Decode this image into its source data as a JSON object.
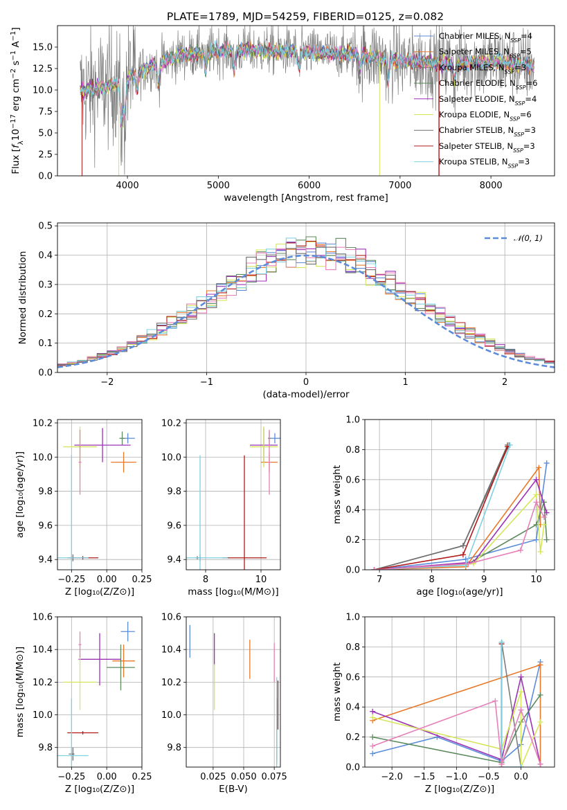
{
  "figure_title": "PLATE=1789, MJD=54259, FIBERID=0125, z=0.082",
  "colors": {
    "Chabrier MILES": "#5b8bd9",
    "Salpeter MILES": "#e8792a",
    "Kroupa MILES": "#7d7d7d",
    "Chabrier ELODIE": "#5c8a5c",
    "Salpeter ELODIE": "#9b30b5",
    "Kroupa ELODIE": "#d6e65a",
    "Chabrier STELIB": "#6e6e6e",
    "Salpeter STELIB": "#b01a1a",
    "Kroupa STELIB": "#7fd1e0",
    "Normal": "#5b8bd9",
    "pink": "#e680b8"
  },
  "chart_data": [
    {
      "id": "spectrum",
      "type": "line",
      "title": "PLATE=1789, MJD=54259, FIBERID=0125, z=0.082",
      "xlabel": "wavelength [Angstrom, rest frame]",
      "ylabel": "Flux [fλ 10⁻¹⁷ erg cm⁻² s⁻¹ A⁻¹]",
      "xlim": [
        3230,
        8700
      ],
      "ylim": [
        0,
        17.5
      ],
      "xticks": [
        4000,
        5000,
        6000,
        7000,
        8000
      ],
      "yticks": [
        0.0,
        2.5,
        5.0,
        7.5,
        10.0,
        12.5,
        15.0
      ],
      "legend": "right",
      "series": [
        {
          "name": "Chabrier MILES, N",
          "sub": "SSP",
          "suffix": "=4"
        },
        {
          "name": "Salpeter MILES, N",
          "sub": "SSP",
          "suffix": "=5"
        },
        {
          "name": "Kroupa MILES, N",
          "sub": "SSP",
          "suffix": "=3"
        },
        {
          "name": "Chabrier ELODIE, N",
          "sub": "SSP",
          "suffix": "=6"
        },
        {
          "name": "Salpeter ELODIE, N",
          "sub": "SSP",
          "suffix": "=4"
        },
        {
          "name": "Kroupa ELODIE, N",
          "sub": "SSP",
          "suffix": "=6"
        },
        {
          "name": "Chabrier STELIB, N",
          "sub": "SSP",
          "suffix": "=3"
        },
        {
          "name": "Salpeter STELIB, N",
          "sub": "SSP",
          "suffix": "=3"
        },
        {
          "name": "Kroupa STELIB, N",
          "sub": "SSP",
          "suffix": "=3"
        }
      ],
      "continuum": [
        [
          3500,
          9.8
        ],
        [
          3700,
          10.3
        ],
        [
          3950,
          10.9
        ],
        [
          4100,
          12.0
        ],
        [
          4300,
          13.0
        ],
        [
          4600,
          14.1
        ],
        [
          5000,
          14.6
        ],
        [
          5500,
          14.6
        ],
        [
          6000,
          14.4
        ],
        [
          6500,
          14.2
        ],
        [
          7000,
          13.4
        ],
        [
          7500,
          13.0
        ],
        [
          8000,
          13.4
        ],
        [
          8400,
          12.9
        ]
      ],
      "spectrum_range": [
        3480,
        8480
      ]
    },
    {
      "id": "residuals",
      "type": "histogram",
      "xlabel": "(data-model)/error",
      "ylabel": "Normed distribution",
      "xlim": [
        -2.5,
        2.5
      ],
      "ylim": [
        0,
        0.51
      ],
      "xticks": [
        -2,
        -1,
        0,
        1,
        2
      ],
      "yticks": [
        0.0,
        0.1,
        0.2,
        0.3,
        0.4,
        0.5
      ],
      "legend": "top-right",
      "legend_label": "𝒩(0, 1)",
      "bin_width": 0.1,
      "series_count": 9
    },
    {
      "id": "age_vs_Z",
      "type": "errorbar",
      "xlabel": "Z [log₁₀(Z/Z⊙)]",
      "ylabel": "age  [log₁₀(age/yr)]",
      "xlim": [
        -0.35,
        0.25
      ],
      "ylim": [
        9.34,
        10.22
      ],
      "xticks": [
        -0.25,
        0.0,
        0.25
      ],
      "xtick_labels": [
        "−0.25",
        "0.00",
        "0.25"
      ],
      "yticks": [
        9.4,
        9.6,
        9.8,
        10.0,
        10.2
      ],
      "points": [
        {
          "s": "Chabrier MILES",
          "x": 0.15,
          "xe": 0.05,
          "y": 10.11,
          "ye": 0.03
        },
        {
          "s": "Salpeter MILES",
          "x": 0.12,
          "xe": 0.09,
          "y": 9.97,
          "ye": 0.06
        },
        {
          "s": "Kroupa MILES",
          "x": -0.25,
          "xe": 0.02,
          "y": 9.41,
          "ye": 0.01
        },
        {
          "s": "Chabrier ELODIE",
          "x": 0.11,
          "xe": 0.02,
          "y": 10.11,
          "ye": 0.04
        },
        {
          "s": "Salpeter ELODIE",
          "x": -0.03,
          "xe": 0.2,
          "y": 10.07,
          "ye": 0.1
        },
        {
          "s": "Kroupa ELODIE",
          "x": -0.19,
          "xe": 0.12,
          "y": 10.06,
          "ye": 0.12
        },
        {
          "s": "Chabrier STELIB",
          "x": -0.24,
          "xe": 0.01,
          "y": 9.41,
          "ye": 0.02
        },
        {
          "s": "Salpeter STELIB",
          "x": -0.17,
          "xe": 0.11,
          "y": 9.41,
          "ye": 0.01
        },
        {
          "s": "Kroupa STELIB",
          "x": -0.25,
          "xe": 0.12,
          "y": 9.41,
          "ye": 0.6
        },
        {
          "s": "pink",
          "x": -0.19,
          "xe": 0.01,
          "y": 9.97,
          "ye": 0.19
        }
      ]
    },
    {
      "id": "age_vs_mass",
      "type": "errorbar",
      "xlabel": "mass [log₁₀(M/M⊙)]",
      "xlim": [
        7.3,
        10.7
      ],
      "ylim": [
        9.34,
        10.22
      ],
      "xticks": [
        8,
        10
      ],
      "yticks": [
        9.4,
        9.6,
        9.8,
        10.0,
        10.2
      ],
      "points": [
        {
          "s": "Chabrier MILES",
          "x": 10.5,
          "xe": 0.2,
          "y": 10.11,
          "ye": 0.03
        },
        {
          "s": "Salpeter MILES",
          "x": 10.3,
          "xe": 0.3,
          "y": 9.97,
          "ye": 0.06
        },
        {
          "s": "Kroupa MILES",
          "x": 7.7,
          "xe": 0.05,
          "y": 9.41,
          "ye": 0.01
        },
        {
          "s": "Chabrier ELODIE",
          "x": 10.3,
          "xe": 0.05,
          "y": 10.11,
          "ye": 0.04
        },
        {
          "s": "Salpeter ELODIE",
          "x": 10.1,
          "xe": 0.5,
          "y": 10.07,
          "ye": 0.1
        },
        {
          "s": "Kroupa ELODIE",
          "x": 10.1,
          "xe": 0.5,
          "y": 10.06,
          "ye": 0.12
        },
        {
          "s": "Chabrier STELIB",
          "x": 7.8,
          "xe": 0.05,
          "y": 9.41,
          "ye": 0.02
        },
        {
          "s": "Salpeter STELIB",
          "x": 9.4,
          "xe": 0.8,
          "y": 9.41,
          "ye": 0.6
        },
        {
          "s": "Kroupa STELIB",
          "x": 7.8,
          "xe": 1.0,
          "y": 9.41,
          "ye": 0.6
        },
        {
          "s": "pink",
          "x": 10.3,
          "xe": 0.05,
          "y": 9.97,
          "ye": 0.19
        }
      ]
    },
    {
      "id": "weight_vs_age",
      "type": "line",
      "xlabel": "age  [log₁₀(age/yr)]",
      "ylabel": "mass weight",
      "xlim": [
        6.72,
        10.35
      ],
      "ylim": [
        0,
        1.0
      ],
      "xticks": [
        7,
        8,
        9,
        10
      ],
      "yticks": [
        0.0,
        0.2,
        0.4,
        0.6,
        0.8,
        1.0
      ],
      "series": [
        {
          "s": "Chabrier MILES",
          "pts": [
            [
              6.9,
              0.0
            ],
            [
              8.65,
              0.07
            ],
            [
              10.0,
              0.2
            ],
            [
              10.2,
              0.71
            ]
          ]
        },
        {
          "s": "Salpeter MILES",
          "pts": [
            [
              6.9,
              0.0
            ],
            [
              8.65,
              0.02
            ],
            [
              10.05,
              0.68
            ],
            [
              10.08,
              0.3
            ]
          ]
        },
        {
          "s": "Kroupa MILES",
          "pts": [
            [
              6.9,
              0.0
            ],
            [
              8.6,
              0.16
            ],
            [
              9.48,
              0.83
            ]
          ]
        },
        {
          "s": "Chabrier ELODIE",
          "pts": [
            [
              6.9,
              0.0
            ],
            [
              8.7,
              0.04
            ],
            [
              10.0,
              0.3
            ],
            [
              10.15,
              0.45
            ],
            [
              10.2,
              0.2
            ]
          ]
        },
        {
          "s": "Salpeter ELODIE",
          "pts": [
            [
              6.9,
              0.0
            ],
            [
              8.8,
              0.05
            ],
            [
              10.0,
              0.6
            ],
            [
              10.2,
              0.38
            ]
          ]
        },
        {
          "s": "Kroupa ELODIE",
          "pts": [
            [
              6.9,
              0.0
            ],
            [
              8.8,
              0.04
            ],
            [
              10.0,
              0.5
            ],
            [
              10.08,
              0.12
            ],
            [
              10.15,
              0.3
            ]
          ]
        },
        {
          "s": "Chabrier STELIB",
          "pts": [
            [
              6.9,
              0.0
            ],
            [
              8.6,
              0.16
            ],
            [
              9.45,
              0.83
            ]
          ]
        },
        {
          "s": "Salpeter STELIB",
          "pts": [
            [
              6.9,
              0.0
            ],
            [
              8.6,
              0.1
            ],
            [
              9.45,
              0.82
            ]
          ]
        },
        {
          "s": "Kroupa STELIB",
          "pts": [
            [
              6.9,
              0.0
            ],
            [
              8.65,
              0.03
            ],
            [
              9.5,
              0.83
            ]
          ]
        },
        {
          "s": "pink",
          "pts": [
            [
              6.9,
              0.0
            ],
            [
              8.7,
              0.04
            ],
            [
              9.7,
              0.13
            ],
            [
              10.0,
              0.45
            ],
            [
              10.15,
              0.35
            ]
          ]
        }
      ]
    },
    {
      "id": "mass_vs_Z",
      "type": "errorbar",
      "xlabel": "Z [log₁₀(Z/Z⊙)]",
      "ylabel": "mass [log₁₀(M/M⊙)]",
      "xlim": [
        -0.35,
        0.25
      ],
      "ylim": [
        9.68,
        10.6
      ],
      "xticks": [
        -0.25,
        0.0,
        0.25
      ],
      "xtick_labels": [
        "−0.25",
        "0.00",
        "0.25"
      ],
      "yticks": [
        9.8,
        10.0,
        10.2,
        10.4,
        10.6
      ],
      "points": [
        {
          "s": "Chabrier MILES",
          "x": 0.15,
          "xe": 0.05,
          "y": 10.51,
          "ye": 0.06
        },
        {
          "s": "Salpeter MILES",
          "x": 0.12,
          "xe": 0.08,
          "y": 10.33,
          "ye": 0.1
        },
        {
          "s": "Kroupa MILES",
          "x": -0.25,
          "xe": 0.02,
          "y": 9.76,
          "ye": 0.01
        },
        {
          "s": "Chabrier ELODIE",
          "x": 0.1,
          "xe": 0.1,
          "y": 10.29,
          "ye": 0.14
        },
        {
          "s": "Salpeter ELODIE",
          "x": -0.05,
          "xe": 0.15,
          "y": 10.34,
          "ye": 0.16
        },
        {
          "s": "Kroupa ELODIE",
          "x": -0.19,
          "xe": 0.12,
          "y": 10.2,
          "ye": 0.17
        },
        {
          "s": "Chabrier STELIB",
          "x": -0.24,
          "xe": 0.01,
          "y": 9.76,
          "ye": 0.04
        },
        {
          "s": "Salpeter STELIB",
          "x": -0.17,
          "xe": 0.11,
          "y": 9.89,
          "ye": 0.01
        },
        {
          "s": "Kroupa STELIB",
          "x": -0.25,
          "xe": 0.12,
          "y": 9.75,
          "ye": 0.35
        },
        {
          "s": "pink",
          "x": -0.19,
          "xe": 0.01,
          "y": 10.43,
          "ye": 0.08
        }
      ]
    },
    {
      "id": "mass_vs_EBV",
      "type": "errorbar",
      "xlabel": "E(B-V)",
      "xlim": [
        0.003,
        0.08
      ],
      "ylim": [
        9.68,
        10.6
      ],
      "xticks": [
        0.025,
        0.05,
        0.075
      ],
      "xtick_labels": [
        "0.025",
        "0.050",
        "0.075"
      ],
      "yticks": [
        9.8,
        10.0,
        10.2,
        10.4,
        10.6
      ],
      "points": [
        {
          "s": "Chabrier MILES",
          "x": 0.006,
          "xe": 0.0,
          "y": 10.45,
          "ye": 0.1
        },
        {
          "s": "Salpeter MILES",
          "x": 0.055,
          "xe": 0.0,
          "y": 10.34,
          "ye": 0.12
        },
        {
          "s": "Kroupa MILES",
          "x": 0.077,
          "xe": 0.0,
          "y": 9.86,
          "ye": 0.12
        },
        {
          "s": "Chabrier ELODIE",
          "x": 0.077,
          "xe": 0.0,
          "y": 9.9,
          "ye": 0.2
        },
        {
          "s": "Salpeter ELODIE",
          "x": 0.026,
          "xe": 0.0,
          "y": 10.4,
          "ye": 0.1
        },
        {
          "s": "Kroupa ELODIE",
          "x": 0.026,
          "xe": 0.0,
          "y": 10.17,
          "ye": 0.14
        },
        {
          "s": "Chabrier STELIB",
          "x": 0.077,
          "xe": 0.0,
          "y": 9.82,
          "ye": 0.1
        },
        {
          "s": "Salpeter STELIB",
          "x": 0.078,
          "xe": 0.0,
          "y": 10.06,
          "ye": 0.15
        },
        {
          "s": "Kroupa STELIB",
          "x": 0.077,
          "xe": 0.0,
          "y": 9.95,
          "ye": 0.28
        },
        {
          "s": "pink",
          "x": 0.075,
          "xe": 0.0,
          "y": 10.32,
          "ye": 0.12
        }
      ]
    },
    {
      "id": "weight_vs_Z",
      "type": "line",
      "xlabel": "Z [log₁₀(Z/Z⊙)]",
      "ylabel": "mass weight",
      "xlim": [
        -2.42,
        0.52
      ],
      "ylim": [
        0,
        1.0
      ],
      "xticks": [
        -2.0,
        -1.5,
        -1.0,
        -0.5,
        0.0
      ],
      "xtick_labels": [
        "−2.0",
        "−1.5",
        "−1.0",
        "−0.5",
        "0.0"
      ],
      "yticks": [
        0.0,
        0.2,
        0.4,
        0.6,
        0.8,
        1.0
      ],
      "series": [
        {
          "s": "Chabrier MILES",
          "pts": [
            [
              -2.3,
              0.09
            ],
            [
              -1.3,
              0.2
            ],
            [
              -0.3,
              0.04
            ],
            [
              0.0,
              0.15
            ],
            [
              0.3,
              0.7
            ]
          ]
        },
        {
          "s": "Salpeter MILES",
          "pts": [
            [
              -2.3,
              0.31
            ],
            [
              0.3,
              0.68
            ],
            [
              0.3,
              0.02
            ]
          ]
        },
        {
          "s": "Kroupa MILES",
          "pts": [
            [
              -0.3,
              0.0
            ],
            [
              -0.3,
              0.83
            ],
            [
              0.0,
              0.0
            ]
          ]
        },
        {
          "s": "Chabrier ELODIE",
          "pts": [
            [
              -2.3,
              0.2
            ],
            [
              -0.3,
              0.03
            ],
            [
              0.0,
              0.3
            ],
            [
              0.3,
              0.48
            ]
          ]
        },
        {
          "s": "Salpeter ELODIE",
          "pts": [
            [
              -2.3,
              0.37
            ],
            [
              -0.3,
              0.05
            ],
            [
              0.0,
              0.6
            ],
            [
              0.3,
              0.02
            ]
          ]
        },
        {
          "s": "Kroupa ELODIE",
          "pts": [
            [
              -2.3,
              0.33
            ],
            [
              -0.3,
              0.12
            ],
            [
              0.0,
              0.5
            ],
            [
              0.0,
              0.0
            ],
            [
              0.3,
              0.3
            ]
          ]
        },
        {
          "s": "Chabrier STELIB",
          "pts": [
            [
              -0.3,
              0.83
            ],
            [
              -0.3,
              0.0
            ]
          ]
        },
        {
          "s": "Salpeter STELIB",
          "pts": [
            [
              -0.3,
              0.82
            ],
            [
              -0.3,
              0.02
            ]
          ]
        },
        {
          "s": "Kroupa STELIB",
          "pts": [
            [
              -0.3,
              0.83
            ],
            [
              -0.3,
              0.0
            ],
            [
              0.0,
              0.0
            ]
          ]
        },
        {
          "s": "pink",
          "pts": [
            [
              -2.3,
              0.14
            ],
            [
              -0.4,
              0.44
            ],
            [
              -0.3,
              0.02
            ],
            [
              0.0,
              0.38
            ],
            [
              0.3,
              0.02
            ]
          ]
        }
      ]
    }
  ]
}
